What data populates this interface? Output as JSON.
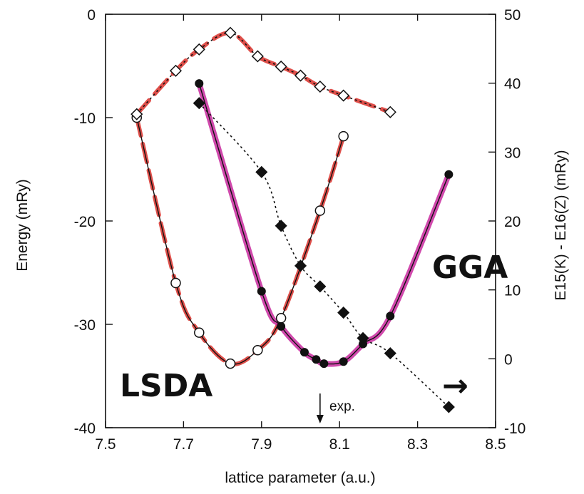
{
  "chart_data": {
    "type": "line",
    "xlabel": "lattice parameter (a.u.)",
    "ylabel_left": "Energy (mRy)",
    "ylabel_right": "E15(K) - E16(Z)   (mRy)",
    "xlim": [
      7.5,
      8.5
    ],
    "ylim_left": [
      -40,
      0
    ],
    "ylim_right": [
      -10,
      50
    ],
    "x_ticks": [
      "7.5",
      "7.7",
      "7.9",
      "8.1",
      "8.3",
      "8.5"
    ],
    "y_ticks_left": [
      "0",
      "-10",
      "-20",
      "-30",
      "-40"
    ],
    "y_ticks_right": [
      "50",
      "40",
      "30",
      "20",
      "10",
      "0",
      "-10"
    ],
    "grid": false,
    "annotations": {
      "lsda_label": "LSDA",
      "gga_label": "GGA",
      "exp_label": "exp.",
      "exp_x": 8.05,
      "arrow_glyph": "→"
    },
    "colors": {
      "lsda": "#d9302a",
      "gga": "#c8299e",
      "ink": "#111111"
    },
    "series": [
      {
        "key": "lsda_energy",
        "axis": "left",
        "marker": "open-circle",
        "line": "solid",
        "x": [
          7.58,
          7.68,
          7.74,
          7.82,
          7.89,
          7.95,
          8.05,
          8.11
        ],
        "y": [
          -10.0,
          -26.0,
          -30.8,
          -33.8,
          -32.5,
          -29.4,
          -19.0,
          -11.8
        ]
      },
      {
        "key": "gga_energy",
        "axis": "left",
        "marker": "filled-circle",
        "line": "solid",
        "x": [
          7.74,
          7.9,
          7.95,
          8.01,
          8.04,
          8.06,
          8.11,
          8.16,
          8.23,
          8.38
        ],
        "y": [
          -6.7,
          -26.8,
          -30.2,
          -32.7,
          -33.4,
          -33.8,
          -33.6,
          -31.9,
          -29.2,
          -15.5
        ]
      },
      {
        "key": "lsda_e15_e16",
        "axis": "right",
        "marker": "open-diamond",
        "line": "dotted",
        "x": [
          7.58,
          7.68,
          7.74,
          7.82,
          7.89,
          7.95,
          8.0,
          8.05,
          8.11,
          8.23
        ],
        "y": [
          35.5,
          41.8,
          44.9,
          47.3,
          43.9,
          42.4,
          41.1,
          39.5,
          38.2,
          35.8
        ]
      },
      {
        "key": "gga_e15_e16",
        "axis": "right",
        "marker": "filled-diamond",
        "line": "dotted",
        "x": [
          7.74,
          7.9,
          7.95,
          8.0,
          8.05,
          8.11,
          8.16,
          8.23,
          8.38
        ],
        "y": [
          37.1,
          27.1,
          19.3,
          13.5,
          10.5,
          6.7,
          3.0,
          0.8,
          -7.0
        ]
      }
    ]
  }
}
